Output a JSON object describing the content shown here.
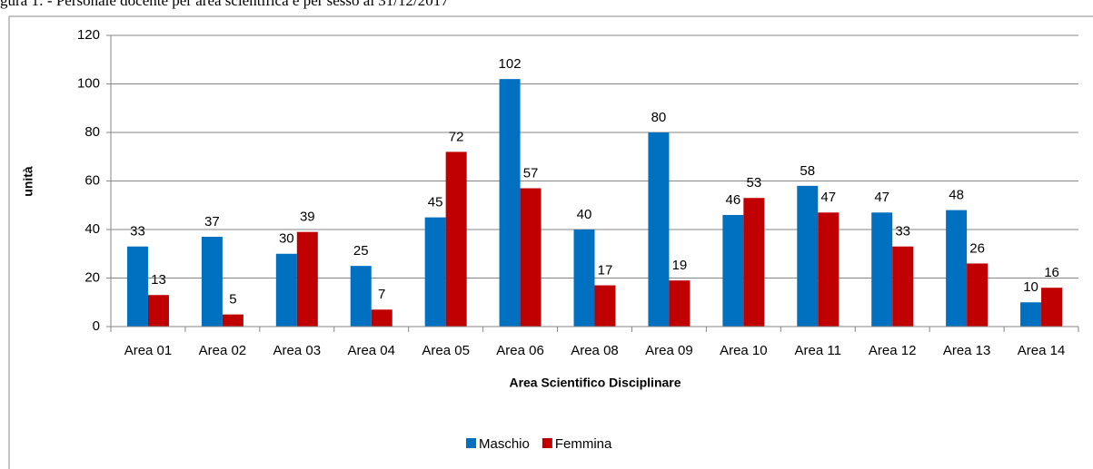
{
  "chart_data": {
    "type": "bar",
    "title": "gura 1: - Personale docente per area scientifica e per sesso al 31/12/2017",
    "x_label": "Area Scientifico  Disciplinare",
    "y_label": "unità",
    "categories": [
      "Area 01",
      "Area 02",
      "Area 03",
      "Area 04",
      "Area 05",
      "Area 06",
      "Area 08",
      "Area 09",
      "Area 10",
      "Area 11",
      "Area 12",
      "Area 13",
      "Area 14"
    ],
    "series": [
      {
        "name": "Maschio",
        "color": "#0070c0",
        "values": [
          33,
          37,
          30,
          25,
          45,
          102,
          40,
          80,
          46,
          58,
          47,
          48,
          10
        ]
      },
      {
        "name": "Femmina",
        "color": "#c00000",
        "values": [
          13,
          5,
          39,
          7,
          72,
          57,
          17,
          19,
          53,
          47,
          33,
          26,
          16
        ]
      }
    ],
    "ylim": [
      0,
      120
    ],
    "yticks": [
      0,
      20,
      40,
      60,
      80,
      100,
      120
    ],
    "grid": true,
    "legend": "bottom"
  }
}
